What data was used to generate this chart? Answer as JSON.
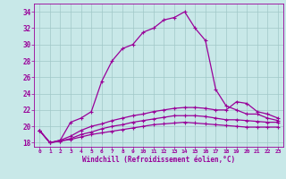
{
  "xlabel": "Windchill (Refroidissement éolien,°C)",
  "background_color": "#c8e8e8",
  "grid_color": "#a0c8c8",
  "line_color": "#990099",
  "xlim": [
    -0.5,
    23.5
  ],
  "ylim": [
    17.5,
    35.0
  ],
  "yticks": [
    18,
    20,
    22,
    24,
    26,
    28,
    30,
    32,
    34
  ],
  "xticks": [
    0,
    1,
    2,
    3,
    4,
    5,
    6,
    7,
    8,
    9,
    10,
    11,
    12,
    13,
    14,
    15,
    16,
    17,
    18,
    19,
    20,
    21,
    22,
    23
  ],
  "series": [
    [
      19.5,
      18.0,
      18.3,
      20.5,
      21.0,
      21.8,
      25.5,
      28.0,
      29.5,
      30.0,
      31.5,
      32.0,
      33.0,
      33.3,
      34.0,
      32.0,
      30.5,
      24.5,
      22.5,
      22.0,
      21.5,
      21.5,
      21.0,
      20.7
    ],
    [
      19.5,
      18.0,
      18.3,
      18.8,
      19.5,
      20.0,
      20.3,
      20.7,
      21.0,
      21.3,
      21.5,
      21.8,
      22.0,
      22.2,
      22.3,
      22.3,
      22.2,
      22.0,
      22.0,
      23.0,
      22.8,
      21.8,
      21.5,
      21.0
    ],
    [
      19.5,
      18.0,
      18.2,
      18.5,
      19.0,
      19.3,
      19.7,
      20.0,
      20.2,
      20.5,
      20.7,
      20.9,
      21.1,
      21.3,
      21.3,
      21.3,
      21.2,
      21.0,
      20.8,
      20.8,
      20.7,
      20.6,
      20.5,
      20.5
    ],
    [
      19.5,
      18.0,
      18.2,
      18.4,
      18.7,
      19.0,
      19.2,
      19.4,
      19.6,
      19.8,
      20.0,
      20.2,
      20.3,
      20.4,
      20.5,
      20.4,
      20.3,
      20.2,
      20.1,
      20.0,
      19.9,
      19.9,
      19.9,
      19.9
    ]
  ]
}
